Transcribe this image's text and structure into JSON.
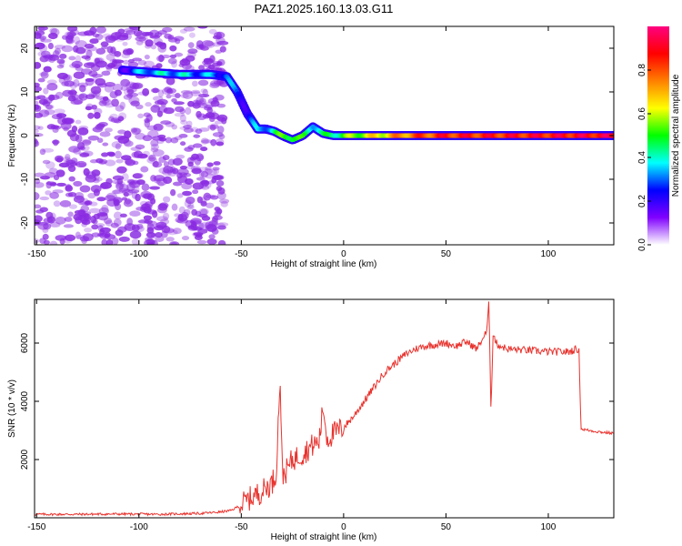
{
  "title": "PAZ1.2025.160.13.03.G11",
  "chart_data": [
    {
      "type": "heatmap",
      "xlabel": "Height of straight line (km)",
      "ylabel": "Frequency (Hz)",
      "xlim": [
        -151,
        132
      ],
      "ylim": [
        -25,
        25
      ],
      "xticks": [
        -150,
        -100,
        -50,
        0,
        50,
        100
      ],
      "yticks": [
        -20,
        -10,
        0,
        10,
        20
      ],
      "colorbar": {
        "label": "Normalized spectral amplitude",
        "range": [
          0,
          1
        ],
        "ticks": [
          "0.0",
          "0.2",
          "0.4",
          "0.6",
          "0.8"
        ],
        "colors": [
          "#ffffff",
          "#8000ff",
          "#0000ff",
          "#00ffff",
          "#00ff00",
          "#ffff00",
          "#ff8000",
          "#ff0000",
          "#ff0080"
        ]
      },
      "ridge": {
        "x": [
          -108,
          -95,
          -80,
          -65,
          -57,
          -52,
          -47,
          -42,
          -38,
          -34,
          -30,
          -25,
          -20,
          -15,
          -10,
          -5,
          0,
          10,
          20,
          30,
          50,
          70,
          132
        ],
        "y": [
          15,
          14.5,
          14,
          14,
          13.5,
          10,
          5,
          1.5,
          1.5,
          1,
          0,
          -1,
          0,
          2,
          0.5,
          0,
          0,
          0,
          0,
          0,
          0,
          0,
          0
        ],
        "amplitude": [
          0.2,
          0.35,
          0.35,
          0.3,
          0.3,
          0.25,
          0.25,
          0.3,
          0.35,
          0.4,
          0.5,
          0.55,
          0.45,
          0.4,
          0.4,
          0.45,
          0.5,
          0.6,
          0.65,
          0.75,
          0.85,
          0.85,
          0.9
        ]
      },
      "noise_region_x": [
        -151,
        -58
      ],
      "noise_amplitude_max": 0.2
    },
    {
      "type": "line",
      "xlabel": "Height of straight line (km)",
      "ylabel": "SNR (10 * v/v)",
      "xlim": [
        -151,
        132
      ],
      "ylim": [
        0,
        7500
      ],
      "xticks": [
        -150,
        -100,
        -50,
        0,
        50,
        100
      ],
      "yticks": [
        2000,
        4000,
        6000
      ],
      "series": [
        {
          "color": "#e8332e",
          "x": [
            -151,
            -130,
            -110,
            -90,
            -70,
            -60,
            -55,
            -50,
            -45,
            -40,
            -35,
            -33,
            -31,
            -30,
            -28,
            -25,
            -20,
            -15,
            -12,
            -10,
            -8,
            -5,
            0,
            5,
            10,
            15,
            20,
            25,
            30,
            35,
            40,
            45,
            50,
            55,
            60,
            65,
            70,
            71,
            72,
            73,
            75,
            80,
            90,
            100,
            110,
            114,
            115,
            116,
            120,
            125,
            132
          ],
          "y": [
            120,
            120,
            130,
            120,
            150,
            200,
            250,
            450,
            700,
            900,
            1200,
            1500,
            4900,
            1500,
            1600,
            2000,
            2200,
            2500,
            2600,
            3800,
            2700,
            2900,
            3100,
            3500,
            4000,
            4500,
            5000,
            5300,
            5600,
            5800,
            5900,
            5950,
            6000,
            5900,
            6050,
            5800,
            6400,
            7400,
            3700,
            6300,
            5950,
            5800,
            5750,
            5700,
            5700,
            5800,
            5700,
            3050,
            3000,
            2950,
            2900
          ]
        }
      ]
    }
  ]
}
